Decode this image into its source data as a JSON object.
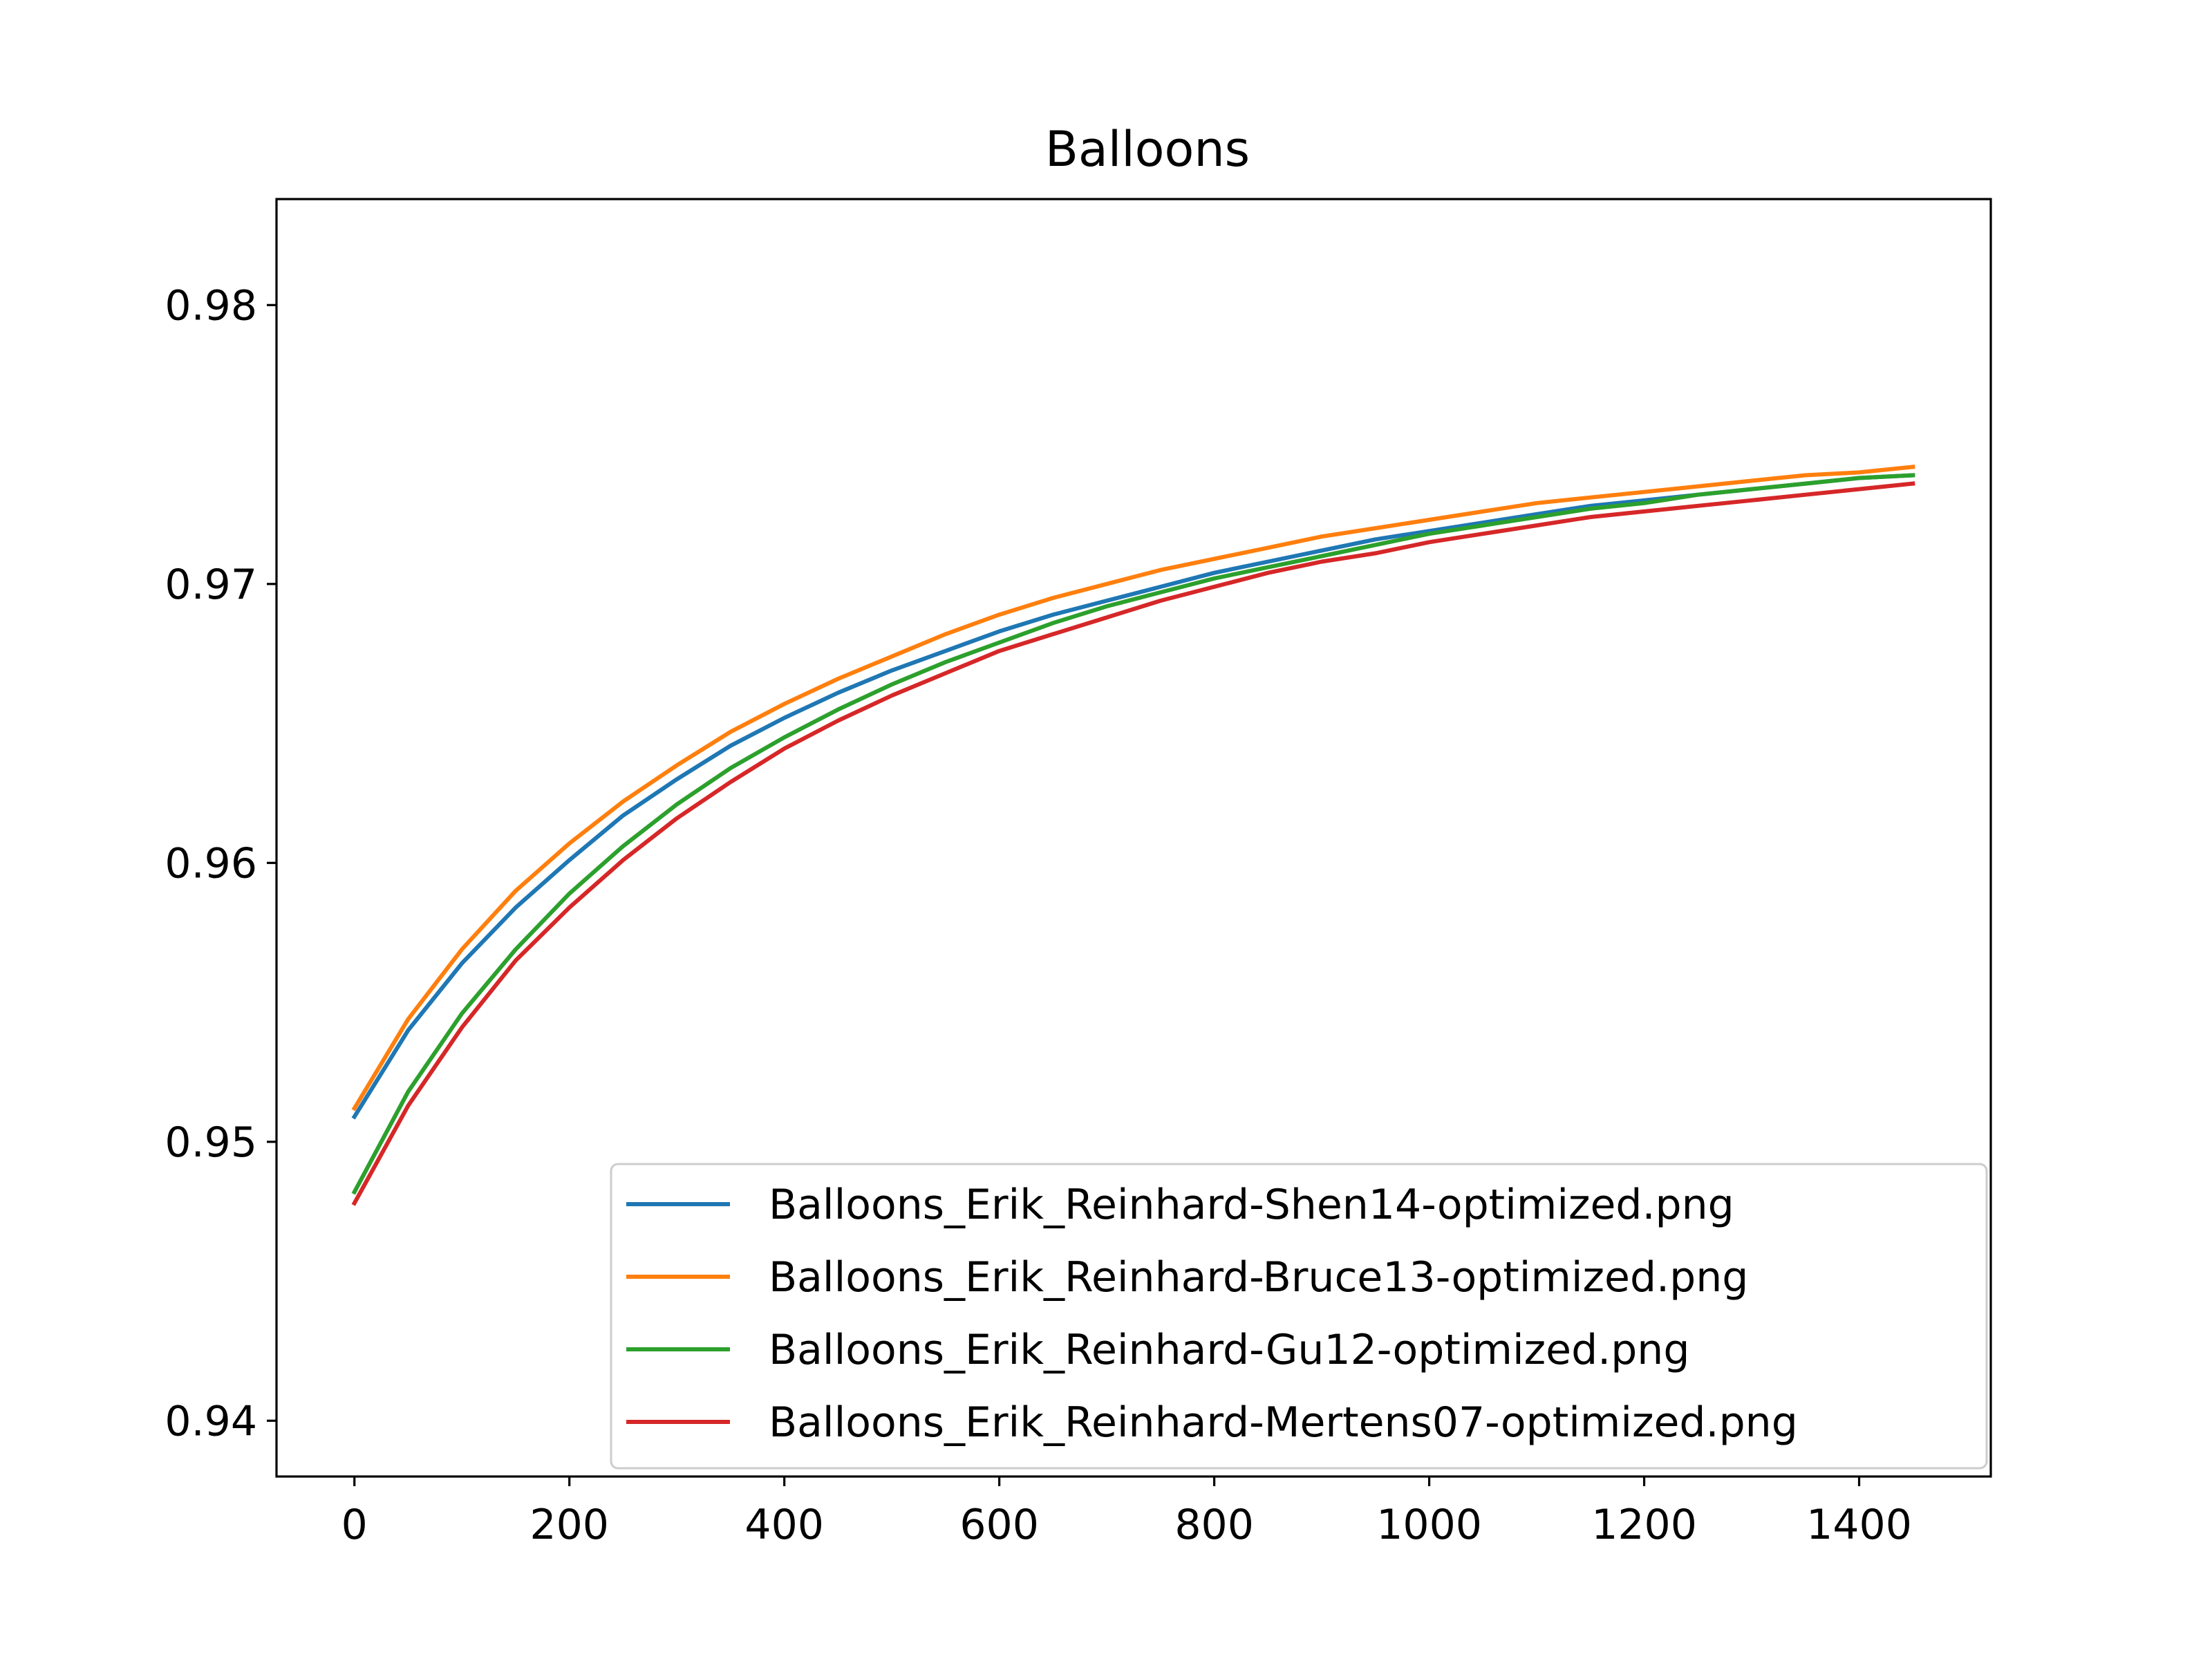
{
  "chart_data": {
    "type": "line",
    "title": "Balloons",
    "xlabel": "",
    "ylabel": "",
    "xlim": [
      -72.5,
      1522.5
    ],
    "ylim": [
      0.938,
      0.9838
    ],
    "xticks": [
      0,
      200,
      400,
      600,
      800,
      1000,
      1200,
      1400
    ],
    "xtick_labels": [
      "0",
      "200",
      "400",
      "600",
      "800",
      "1000",
      "1200",
      "1400"
    ],
    "yticks": [
      0.94,
      0.95,
      0.96,
      0.97,
      0.98
    ],
    "ytick_labels": [
      "0.94",
      "0.95",
      "0.96",
      "0.97",
      "0.98"
    ],
    "grid": false,
    "legend_position": "lower-right",
    "x": [
      0,
      50,
      100,
      150,
      200,
      250,
      300,
      350,
      400,
      450,
      500,
      550,
      600,
      650,
      700,
      750,
      800,
      850,
      900,
      950,
      1000,
      1050,
      1100,
      1150,
      1200,
      1250,
      1300,
      1350,
      1400,
      1450
    ],
    "series": [
      {
        "name": "Balloons_Erik_Reinhard-Shen14-optimized.png",
        "color": "#1f77b4",
        "values": [
          0.9509,
          0.954,
          0.9564,
          0.9584,
          0.9601,
          0.9617,
          0.963,
          0.9642,
          0.9652,
          0.9661,
          0.9669,
          0.9676,
          0.9683,
          0.9689,
          0.9694,
          0.9699,
          0.9704,
          0.9708,
          0.9712,
          0.9716,
          0.9719,
          0.9722,
          0.9725,
          0.9728,
          0.973,
          0.9732,
          0.9734,
          0.9736,
          0.9738,
          0.9739
        ]
      },
      {
        "name": "Balloons_Erik_Reinhard-Bruce13-optimized.png",
        "color": "#ff7f0e",
        "values": [
          0.9512,
          0.9544,
          0.9569,
          0.959,
          0.9607,
          0.9622,
          0.9635,
          0.9647,
          0.9657,
          0.9666,
          0.9674,
          0.9682,
          0.9689,
          0.9695,
          0.97,
          0.9705,
          0.9709,
          0.9713,
          0.9717,
          0.972,
          0.9723,
          0.9726,
          0.9729,
          0.9731,
          0.9733,
          0.9735,
          0.9737,
          0.9739,
          0.974,
          0.9742
        ]
      },
      {
        "name": "Balloons_Erik_Reinhard-Gu12-optimized.png",
        "color": "#2ca02c",
        "values": [
          0.9482,
          0.9518,
          0.9546,
          0.9569,
          0.9589,
          0.9606,
          0.9621,
          0.9634,
          0.9645,
          0.9655,
          0.9664,
          0.9672,
          0.9679,
          0.9686,
          0.9692,
          0.9697,
          0.9702,
          0.9706,
          0.971,
          0.9714,
          0.9718,
          0.9721,
          0.9724,
          0.9727,
          0.9729,
          0.9732,
          0.9734,
          0.9736,
          0.9738,
          0.9739
        ]
      },
      {
        "name": "Balloons_Erik_Reinhard-Mertens07-optimized.png",
        "color": "#d62728",
        "values": [
          0.9478,
          0.9513,
          0.9541,
          0.9565,
          0.9584,
          0.9601,
          0.9616,
          0.9629,
          0.9641,
          0.9651,
          0.966,
          0.9668,
          0.9676,
          0.9682,
          0.9688,
          0.9694,
          0.9699,
          0.9704,
          0.9708,
          0.9711,
          0.9715,
          0.9718,
          0.9721,
          0.9724,
          0.9726,
          0.9728,
          0.973,
          0.9732,
          0.9734,
          0.9736
        ]
      }
    ]
  }
}
